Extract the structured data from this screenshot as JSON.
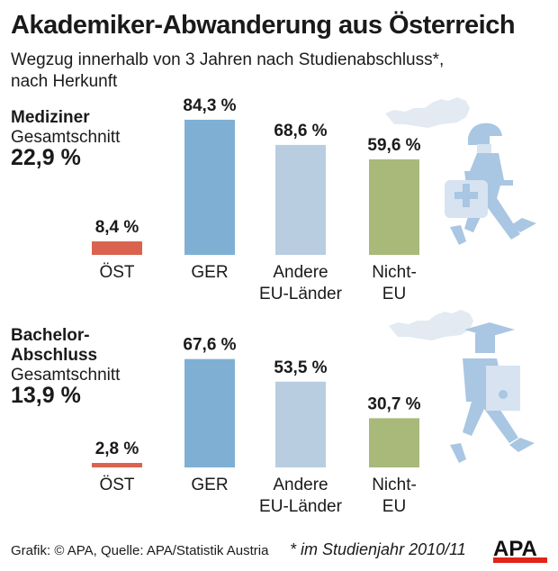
{
  "title": "Akademiker-Abwanderung aus Österreich",
  "subtitle_line1": "Wegzug innerhalb von 3 Jahren nach Studienabschluss*,",
  "subtitle_line2": "nach Herkunft",
  "footer": "Grafik: © APA, Quelle: APA/Statistik Austria",
  "note": "* im Studienjahr 2010/11",
  "logo": "APA",
  "colors": {
    "OEST": "#d9634f",
    "GER": "#7fb0d4",
    "EU": "#b9cde0",
    "NonEU": "#a8b97a",
    "icon": "#a9c6e3",
    "map": "#e3eaf2"
  },
  "icons": [
    "austria-map-icon",
    "walking-doctor-icon",
    "walking-graduate-icon"
  ],
  "chart_data": [
    {
      "type": "bar",
      "group_label_line1": "Mediziner",
      "group_label_line2": "",
      "average_label": "Gesamtschnitt",
      "average_value": "22,9 %",
      "categories": [
        [
          "ÖST"
        ],
        [
          "GER"
        ],
        [
          "Andere",
          "EU-Länder"
        ],
        [
          "Nicht-",
          "EU"
        ]
      ],
      "values": [
        8.4,
        84.3,
        68.6,
        59.6
      ],
      "value_labels": [
        "8,4 %",
        "84,3 %",
        "68,6 %",
        "59,6 %"
      ],
      "unit": "%"
    },
    {
      "type": "bar",
      "group_label_line1": "Bachelor-",
      "group_label_line2": "Abschluss",
      "average_label": "Gesamtschnitt",
      "average_value": "13,9 %",
      "categories": [
        [
          "ÖST"
        ],
        [
          "GER"
        ],
        [
          "Andere",
          "EU-Länder"
        ],
        [
          "Nicht-",
          "EU"
        ]
      ],
      "values": [
        2.8,
        67.6,
        53.5,
        30.7
      ],
      "value_labels": [
        "2,8 %",
        "67,6 %",
        "53,5 %",
        "30,7 %"
      ],
      "unit": "%"
    }
  ]
}
